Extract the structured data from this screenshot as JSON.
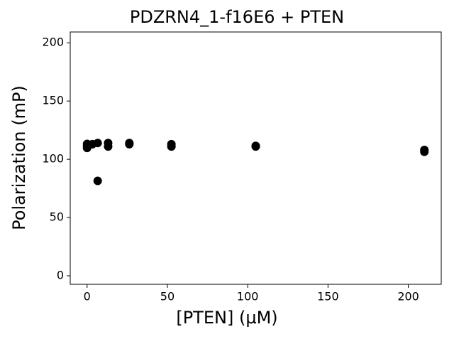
{
  "chart_data": {
    "type": "scatter",
    "title": "PDZRN4_1-f16E6 + PTEN",
    "xlabel": "[PTEN] (µM)",
    "ylabel": "Polarization (mP)",
    "series": [
      {
        "color": "#000000",
        "x": [
          0,
          0,
          0,
          3.3,
          6.6,
          6.6,
          13.1,
          13.1,
          26.3,
          26.3,
          52.5,
          52.5,
          105,
          105,
          210,
          210
        ],
        "values": [
          111.6,
          109.8,
          113.2,
          113,
          114,
          81.5,
          114,
          111,
          114,
          113,
          113,
          111,
          111.5,
          111,
          108,
          106.5
        ]
      }
    ],
    "xlim": [
      -10.5,
      220.5
    ],
    "ylim": [
      -7.3,
      209.3
    ],
    "xticks": [
      0,
      50,
      100,
      150,
      200
    ],
    "yticks": [
      0,
      50,
      100,
      150,
      200
    ]
  }
}
